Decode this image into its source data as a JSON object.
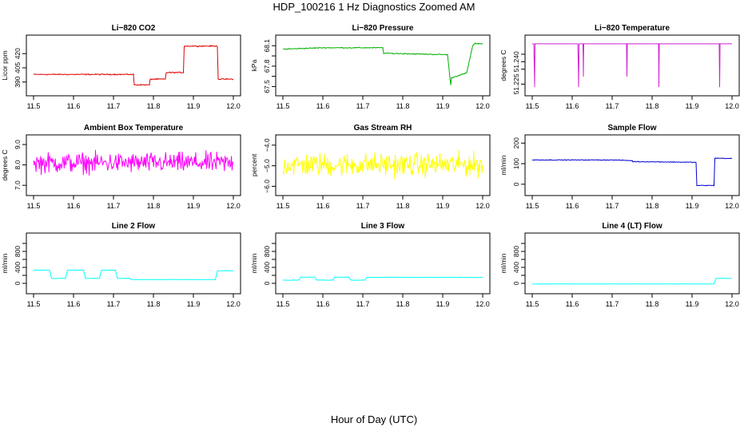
{
  "title": "HDP_100216  1 Hz Diagnostics Zoomed AM",
  "xlabel": "Hour of Day (UTC)",
  "chart_data": [
    {
      "type": "line",
      "title": "Li−820 CO2",
      "ylabel": "Licor ppm",
      "color": "#e00000",
      "xlim": [
        11.5,
        12.0
      ],
      "ylim": [
        383,
        432
      ],
      "yticks": [
        390,
        405,
        420
      ],
      "yticklabels": [
        "390",
        "405",
        "420"
      ],
      "noise": 0.4,
      "series": [
        {
          "x": [
            11.5,
            11.75,
            11.752,
            11.79,
            11.792,
            11.83,
            11.832,
            11.875,
            11.877,
            11.96,
            11.962,
            12.0
          ],
          "y": [
            398,
            398,
            387,
            387,
            393,
            393,
            400,
            400,
            428,
            428,
            393,
            393
          ]
        }
      ]
    },
    {
      "type": "line",
      "title": "Li−820 Pressure",
      "ylabel": "kPa",
      "color": "#00b000",
      "xlim": [
        11.5,
        12.0
      ],
      "ylim": [
        67.47,
        68.15
      ],
      "yticks": [
        67.5,
        67.65,
        67.8,
        67.95,
        68.1
      ],
      "yticklabels": [
        "67.5",
        "",
        "67.8",
        "",
        "68.1"
      ],
      "noise": 0.005,
      "series": [
        {
          "x": [
            11.5,
            11.6,
            11.75,
            11.752,
            11.9,
            11.912,
            11.92,
            11.922,
            11.96,
            11.975,
            11.98,
            12.0
          ],
          "y": [
            68.05,
            68.07,
            68.07,
            67.99,
            67.97,
            67.97,
            67.52,
            67.63,
            67.7,
            68.1,
            68.13,
            68.13
          ]
        }
      ]
    },
    {
      "type": "line",
      "title": "Li−820 Temperature",
      "ylabel": "degrees C",
      "color": "#d020d0",
      "xlim": [
        11.5,
        12.0
      ],
      "ylim": [
        51.222,
        51.253
      ],
      "yticks": [
        51.225,
        51.235,
        51.24,
        51.245
      ],
      "yticklabels": [
        "51.225",
        "",
        "51.240",
        ""
      ],
      "noise": 0,
      "series": [
        {
          "x": [
            11.5,
            11.504,
            11.506,
            11.507,
            11.614,
            11.615,
            11.616,
            11.617,
            11.627,
            11.628,
            11.629,
            11.736,
            11.737,
            11.738,
            11.816,
            11.817,
            11.818,
            11.968,
            11.969,
            11.97,
            12.0
          ],
          "y": [
            51.252,
            51.252,
            51.223,
            51.252,
            51.252,
            51.241,
            51.223,
            51.252,
            51.252,
            51.23,
            51.252,
            51.252,
            51.23,
            51.252,
            51.252,
            51.223,
            51.252,
            51.252,
            51.223,
            51.252,
            51.252
          ]
        }
      ]
    },
    {
      "type": "line",
      "title": "Ambient Box Temperature",
      "ylabel": "degrees C",
      "color": "#ff00ff",
      "xlim": [
        11.5,
        12.0
      ],
      "ylim": [
        6.85,
        9.12
      ],
      "yticks": [
        7.0,
        8.0,
        9.0
      ],
      "yticklabels": [
        "7.0",
        "8.0",
        "9.0"
      ],
      "noise": 0.35,
      "series": [
        {
          "x": [
            11.5,
            12.0
          ],
          "y": [
            8.1,
            8.1
          ]
        }
      ]
    },
    {
      "type": "line",
      "title": "Gas Stream RH",
      "ylabel": "percent",
      "color": "#ffff00",
      "xlim": [
        11.5,
        12.0
      ],
      "ylim": [
        -6.1,
        -3.85
      ],
      "yticks": [
        -6.0,
        -5.0,
        -4.0
      ],
      "yticklabels": [
        "−6.0",
        "−5.0",
        "−4.0"
      ],
      "noise": 0.4,
      "series": [
        {
          "x": [
            11.5,
            12.0
          ],
          "y": [
            -4.95,
            -4.95
          ]
        }
      ]
    },
    {
      "type": "line",
      "title": "Sample Flow",
      "ylabel": "ml/min",
      "color": "#0000d0",
      "xlim": [
        11.5,
        12.0
      ],
      "ylim": [
        -20,
        205
      ],
      "yticks": [
        0,
        100,
        200
      ],
      "yticklabels": [
        "0",
        "100",
        "200"
      ],
      "noise": 1.2,
      "series": [
        {
          "x": [
            11.5,
            11.7,
            11.75,
            11.752,
            11.9,
            11.91,
            11.912,
            11.955,
            11.957,
            12.0
          ],
          "y": [
            118,
            118,
            115,
            110,
            107,
            106,
            -6,
            -6,
            127,
            125
          ]
        }
      ]
    },
    {
      "type": "line",
      "title": "Line 2 Flow",
      "ylabel": "ml/min",
      "color": "#00ffff",
      "xlim": [
        11.5,
        12.0
      ],
      "ylim": [
        -80,
        1080
      ],
      "yticks": [
        0,
        200,
        400,
        600,
        800,
        1000
      ],
      "yticklabels": [
        "0",
        "",
        "400",
        "",
        "800",
        ""
      ],
      "noise": 3,
      "series": [
        {
          "x": [
            11.5,
            11.54,
            11.545,
            11.58,
            11.585,
            11.625,
            11.63,
            11.665,
            11.67,
            11.705,
            11.71,
            11.74,
            11.745,
            11.955,
            11.96,
            12.0
          ],
          "y": [
            330,
            330,
            125,
            125,
            330,
            330,
            125,
            125,
            330,
            330,
            125,
            125,
            95,
            95,
            315,
            315
          ]
        }
      ]
    },
    {
      "type": "line",
      "title": "Line 3 Flow",
      "ylabel": "ml/min",
      "color": "#00ffff",
      "xlim": [
        11.5,
        12.0
      ],
      "ylim": [
        -80,
        1080
      ],
      "yticks": [
        0,
        200,
        400,
        600,
        800,
        1000
      ],
      "yticklabels": [
        "0",
        "",
        "400",
        "",
        "800",
        ""
      ],
      "noise": 3,
      "series": [
        {
          "x": [
            11.5,
            11.54,
            11.545,
            11.58,
            11.585,
            11.625,
            11.63,
            11.665,
            11.67,
            11.705,
            11.71,
            12.0
          ],
          "y": [
            80,
            80,
            155,
            155,
            80,
            80,
            155,
            155,
            80,
            80,
            150,
            150
          ]
        }
      ]
    },
    {
      "type": "line",
      "title": "Line 4 (LT) Flow",
      "ylabel": "ml/min",
      "color": "#00ffff",
      "xlim": [
        11.5,
        12.0
      ],
      "ylim": [
        -80,
        1080
      ],
      "yticks": [
        0,
        200,
        400,
        600,
        800,
        1000
      ],
      "yticklabels": [
        "0",
        "",
        "400",
        "",
        "800",
        ""
      ],
      "noise": 3,
      "series": [
        {
          "x": [
            11.5,
            11.955,
            11.96,
            12.0
          ],
          "y": [
            -15,
            -15,
            125,
            125
          ]
        }
      ]
    }
  ],
  "xticks": [
    11.5,
    11.6,
    11.7,
    11.8,
    11.9,
    12.0
  ],
  "xticklabels": [
    "11.5",
    "11.6",
    "11.7",
    "11.8",
    "11.9",
    "12.0"
  ]
}
